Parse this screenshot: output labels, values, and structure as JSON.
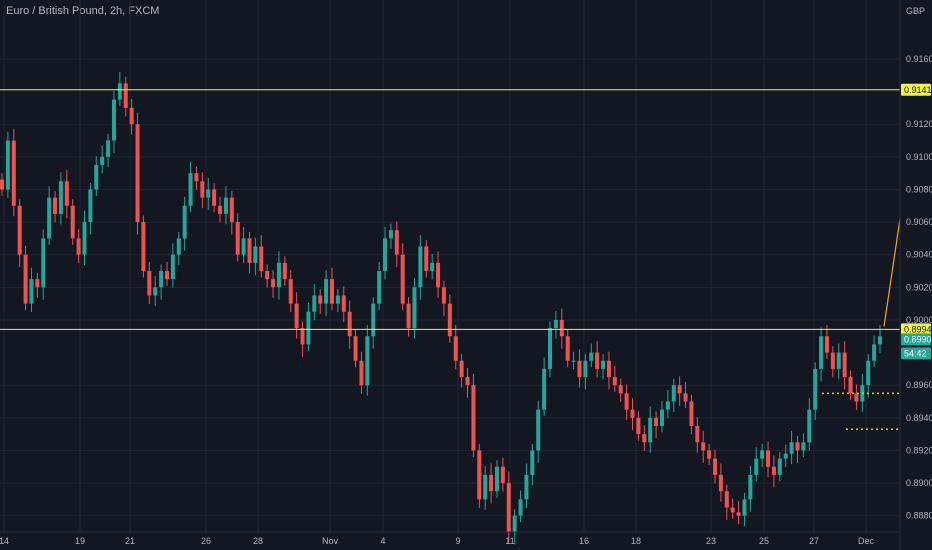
{
  "header": {
    "symbol_title": "Euro / British Pound, 2h, FXCM",
    "currency": "GBP"
  },
  "colors": {
    "background": "#131722",
    "grid": "#1f2430",
    "up": "#26a69a",
    "down": "#ef5350",
    "hline": "#f5f542",
    "marker_dots": "#ffc107",
    "projection": "#f5a623",
    "current_price": "#26a69a",
    "axis_text": "#b2b5be"
  },
  "price_axis": {
    "labels": [
      "0.91600",
      "0.91200",
      "0.91000",
      "0.90800",
      "0.90600",
      "0.90400",
      "0.90200",
      "0.90000",
      "0.89600",
      "0.89400",
      "0.89200",
      "0.89000",
      "0.88800"
    ]
  },
  "time_axis": {
    "labels": [
      "14",
      "19",
      "21",
      "26",
      "28",
      "Nov",
      "4",
      "9",
      "11",
      "16",
      "18",
      "23",
      "25",
      "27",
      "Dec"
    ]
  },
  "price_tags": [
    {
      "id": "resistance",
      "value": "0.91411"
    },
    {
      "id": "support",
      "value": "0.89942"
    },
    {
      "id": "current",
      "value": "0.89904"
    },
    {
      "id": "countdown",
      "value": "54:42"
    }
  ],
  "chart_data": {
    "type": "candlestick",
    "title": "Euro / British Pound, 2h, FXCM",
    "ylim": [
      0.887,
      0.919
    ],
    "x_labels": [
      "14",
      "19",
      "21",
      "26",
      "28",
      "Nov",
      "4",
      "9",
      "11",
      "16",
      "18",
      "23",
      "25",
      "27",
      "Dec"
    ],
    "horizontal_lines": [
      0.91411,
      0.89942
    ],
    "support_markers": [
      0.8955,
      0.8933
    ],
    "projection": {
      "from": 0.8996,
      "to": 0.9062
    },
    "current_price": 0.89904,
    "closes": [
      0.908,
      0.911,
      0.907,
      0.904,
      0.901,
      0.9025,
      0.902,
      0.905,
      0.9075,
      0.9065,
      0.9085,
      0.907,
      0.905,
      0.904,
      0.906,
      0.908,
      0.9095,
      0.91,
      0.911,
      0.9135,
      0.9145,
      0.913,
      0.912,
      0.906,
      0.903,
      0.9015,
      0.902,
      0.903,
      0.9025,
      0.904,
      0.905,
      0.907,
      0.909,
      0.9085,
      0.9075,
      0.908,
      0.907,
      0.9065,
      0.9075,
      0.906,
      0.904,
      0.905,
      0.9035,
      0.9045,
      0.903,
      0.9025,
      0.902,
      0.9035,
      0.9025,
      0.901,
      0.8995,
      0.8985,
      0.9005,
      0.9015,
      0.901,
      0.9025,
      0.901,
      0.9015,
      0.9005,
      0.899,
      0.8975,
      0.896,
      0.899,
      0.901,
      0.903,
      0.905,
      0.9055,
      0.904,
      0.901,
      0.8995,
      0.902,
      0.9045,
      0.903,
      0.9035,
      0.902,
      0.901,
      0.899,
      0.8975,
      0.8965,
      0.896,
      0.892,
      0.889,
      0.8905,
      0.8895,
      0.891,
      0.89,
      0.887,
      0.888,
      0.889,
      0.8905,
      0.892,
      0.8945,
      0.897,
      0.8995,
      0.9,
      0.899,
      0.8975,
      0.8975,
      0.8965,
      0.8975,
      0.898,
      0.897,
      0.8975,
      0.8965,
      0.896,
      0.8955,
      0.8945,
      0.894,
      0.893,
      0.8925,
      0.894,
      0.8935,
      0.8945,
      0.895,
      0.896,
      0.8955,
      0.895,
      0.8935,
      0.8925,
      0.892,
      0.8915,
      0.8905,
      0.8895,
      0.8885,
      0.8882,
      0.888,
      0.889,
      0.8905,
      0.8915,
      0.892,
      0.891,
      0.8905,
      0.8915,
      0.8918,
      0.8925,
      0.892,
      0.8925,
      0.8945,
      0.897,
      0.899,
      0.898,
      0.897,
      0.898,
      0.8965,
      0.8955,
      0.895,
      0.896,
      0.8975,
      0.8985,
      0.899
    ]
  }
}
